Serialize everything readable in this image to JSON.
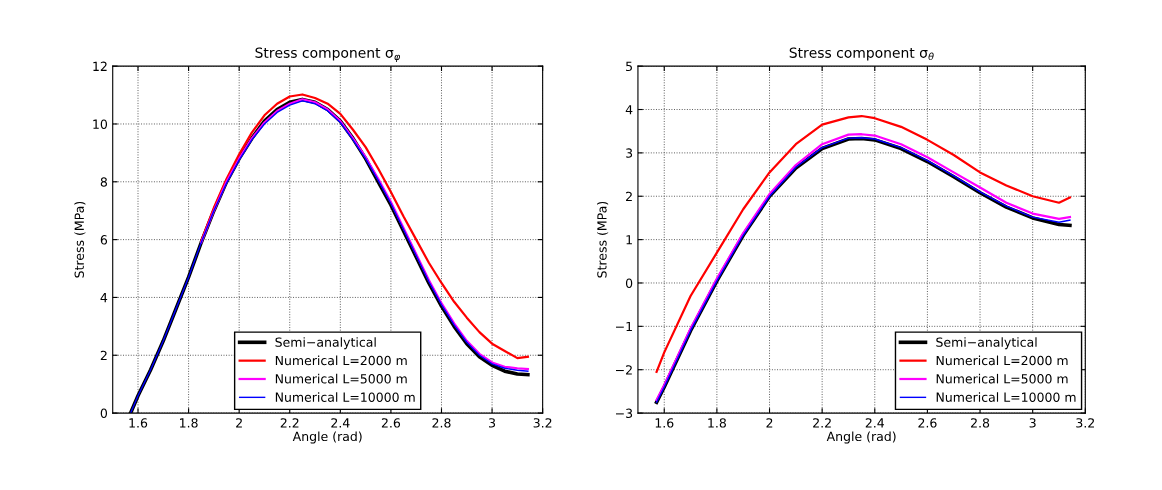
{
  "chart_data": [
    {
      "type": "line",
      "title": "Stress component σ$_{φ}$",
      "xlabel": "Angle (rad)",
      "ylabel": "Stress (MPa)",
      "x": [
        1.5708,
        1.6,
        1.65,
        1.7,
        1.75,
        1.8,
        1.85,
        1.9,
        1.95,
        2.0,
        2.05,
        2.1,
        2.15,
        2.2,
        2.25,
        2.3,
        2.35,
        2.4,
        2.45,
        2.5,
        2.55,
        2.6,
        2.65,
        2.7,
        2.75,
        2.8,
        2.85,
        2.9,
        2.95,
        3.0,
        3.05,
        3.1,
        3.1416
      ],
      "series": [
        {
          "name": "Semi−analytical",
          "color": "#000000",
          "values": [
            0,
            0.6,
            1.5,
            2.5,
            3.6,
            4.7,
            5.9,
            7.0,
            8.0,
            8.8,
            9.5,
            10.1,
            10.5,
            10.75,
            10.85,
            10.75,
            10.5,
            10.1,
            9.5,
            8.8,
            8.0,
            7.2,
            6.3,
            5.4,
            4.5,
            3.7,
            3.0,
            2.4,
            1.95,
            1.65,
            1.45,
            1.35,
            1.33
          ]
        },
        {
          "name": "Numerical L=2000 m",
          "color": "#ff0000",
          "values": [
            null,
            null,
            null,
            null,
            null,
            null,
            5.95,
            7.1,
            8.1,
            8.95,
            9.7,
            10.3,
            10.7,
            10.95,
            11.02,
            10.9,
            10.7,
            10.35,
            9.8,
            9.2,
            8.45,
            7.65,
            6.8,
            6.0,
            5.2,
            4.5,
            3.85,
            3.3,
            2.8,
            2.4,
            2.15,
            1.9,
            1.95
          ]
        },
        {
          "name": "Numerical L=5000 m",
          "color": "#ff00ff",
          "values": [
            null,
            null,
            null,
            null,
            null,
            null,
            5.9,
            7.0,
            8.0,
            8.8,
            9.5,
            10.05,
            10.45,
            10.7,
            10.85,
            10.75,
            10.5,
            10.1,
            9.5,
            8.85,
            8.1,
            7.3,
            6.4,
            5.5,
            4.6,
            3.8,
            3.1,
            2.5,
            2.05,
            1.75,
            1.6,
            1.55,
            1.52
          ]
        },
        {
          "name": "Numerical L=10000 m",
          "color": "#0000ff",
          "values": [
            0,
            0.6,
            1.5,
            2.5,
            3.6,
            4.7,
            5.9,
            7.0,
            7.95,
            8.75,
            9.45,
            10.0,
            10.4,
            10.65,
            10.8,
            10.7,
            10.45,
            10.05,
            9.45,
            8.8,
            8.05,
            7.25,
            6.35,
            5.45,
            4.55,
            3.75,
            3.05,
            2.45,
            2.0,
            1.7,
            1.55,
            1.48,
            1.45
          ]
        }
      ],
      "xlim": [
        1.5,
        3.2
      ],
      "xticks": [
        1.6,
        1.8,
        2,
        2.2,
        2.4,
        2.6,
        2.8,
        3,
        3.2
      ],
      "ylim": [
        0,
        12
      ],
      "yticks": [
        0,
        2,
        4,
        6,
        8,
        10,
        12
      ],
      "grid": true,
      "legend": "bottom",
      "line_style": "solid",
      "marker": "none"
    },
    {
      "type": "line",
      "title": "Stress component σ$_{θ}$",
      "xlabel": "Angle (rad)",
      "ylabel": "Stress (MPa)",
      "x": [
        1.5708,
        1.6,
        1.7,
        1.8,
        1.9,
        2.0,
        2.1,
        2.2,
        2.3,
        2.35,
        2.4,
        2.5,
        2.6,
        2.7,
        2.8,
        2.9,
        3.0,
        3.1,
        3.1416
      ],
      "series": [
        {
          "name": "Semi−analytical",
          "color": "#000000",
          "values": [
            -2.75,
            -2.4,
            -1.1,
            0.05,
            1.1,
            2.0,
            2.65,
            3.1,
            3.32,
            3.33,
            3.3,
            3.1,
            2.8,
            2.45,
            2.08,
            1.75,
            1.5,
            1.35,
            1.33
          ]
        },
        {
          "name": "Numerical L=2000 m",
          "color": "#ff0000",
          "values": [
            -2.05,
            -1.6,
            -0.3,
            0.7,
            1.7,
            2.55,
            3.2,
            3.65,
            3.82,
            3.85,
            3.8,
            3.6,
            3.3,
            2.95,
            2.55,
            2.25,
            2.0,
            1.85,
            1.97
          ]
        },
        {
          "name": "Numerical L=5000 m",
          "color": "#ff00ff",
          "values": [
            -2.7,
            -2.35,
            -1.05,
            0.1,
            1.15,
            2.05,
            2.72,
            3.2,
            3.42,
            3.43,
            3.4,
            3.2,
            2.9,
            2.55,
            2.2,
            1.85,
            1.6,
            1.48,
            1.52
          ]
        },
        {
          "name": "Numerical L=10000 m",
          "color": "#0000ff",
          "values": [
            -2.75,
            -2.4,
            -1.1,
            0.05,
            1.1,
            2.0,
            2.67,
            3.12,
            3.34,
            3.35,
            3.32,
            3.12,
            2.82,
            2.47,
            2.1,
            1.77,
            1.52,
            1.4,
            1.45
          ]
        }
      ],
      "xlim": [
        1.5,
        3.2
      ],
      "xticks": [
        1.6,
        1.8,
        2,
        2.2,
        2.4,
        2.6,
        2.8,
        3,
        3.2
      ],
      "ylim": [
        -3,
        5
      ],
      "yticks": [
        -3,
        -2,
        -1,
        0,
        1,
        2,
        3,
        4,
        5
      ],
      "grid": true,
      "legend": "bottom right",
      "line_style": "solid",
      "marker": "none"
    }
  ]
}
